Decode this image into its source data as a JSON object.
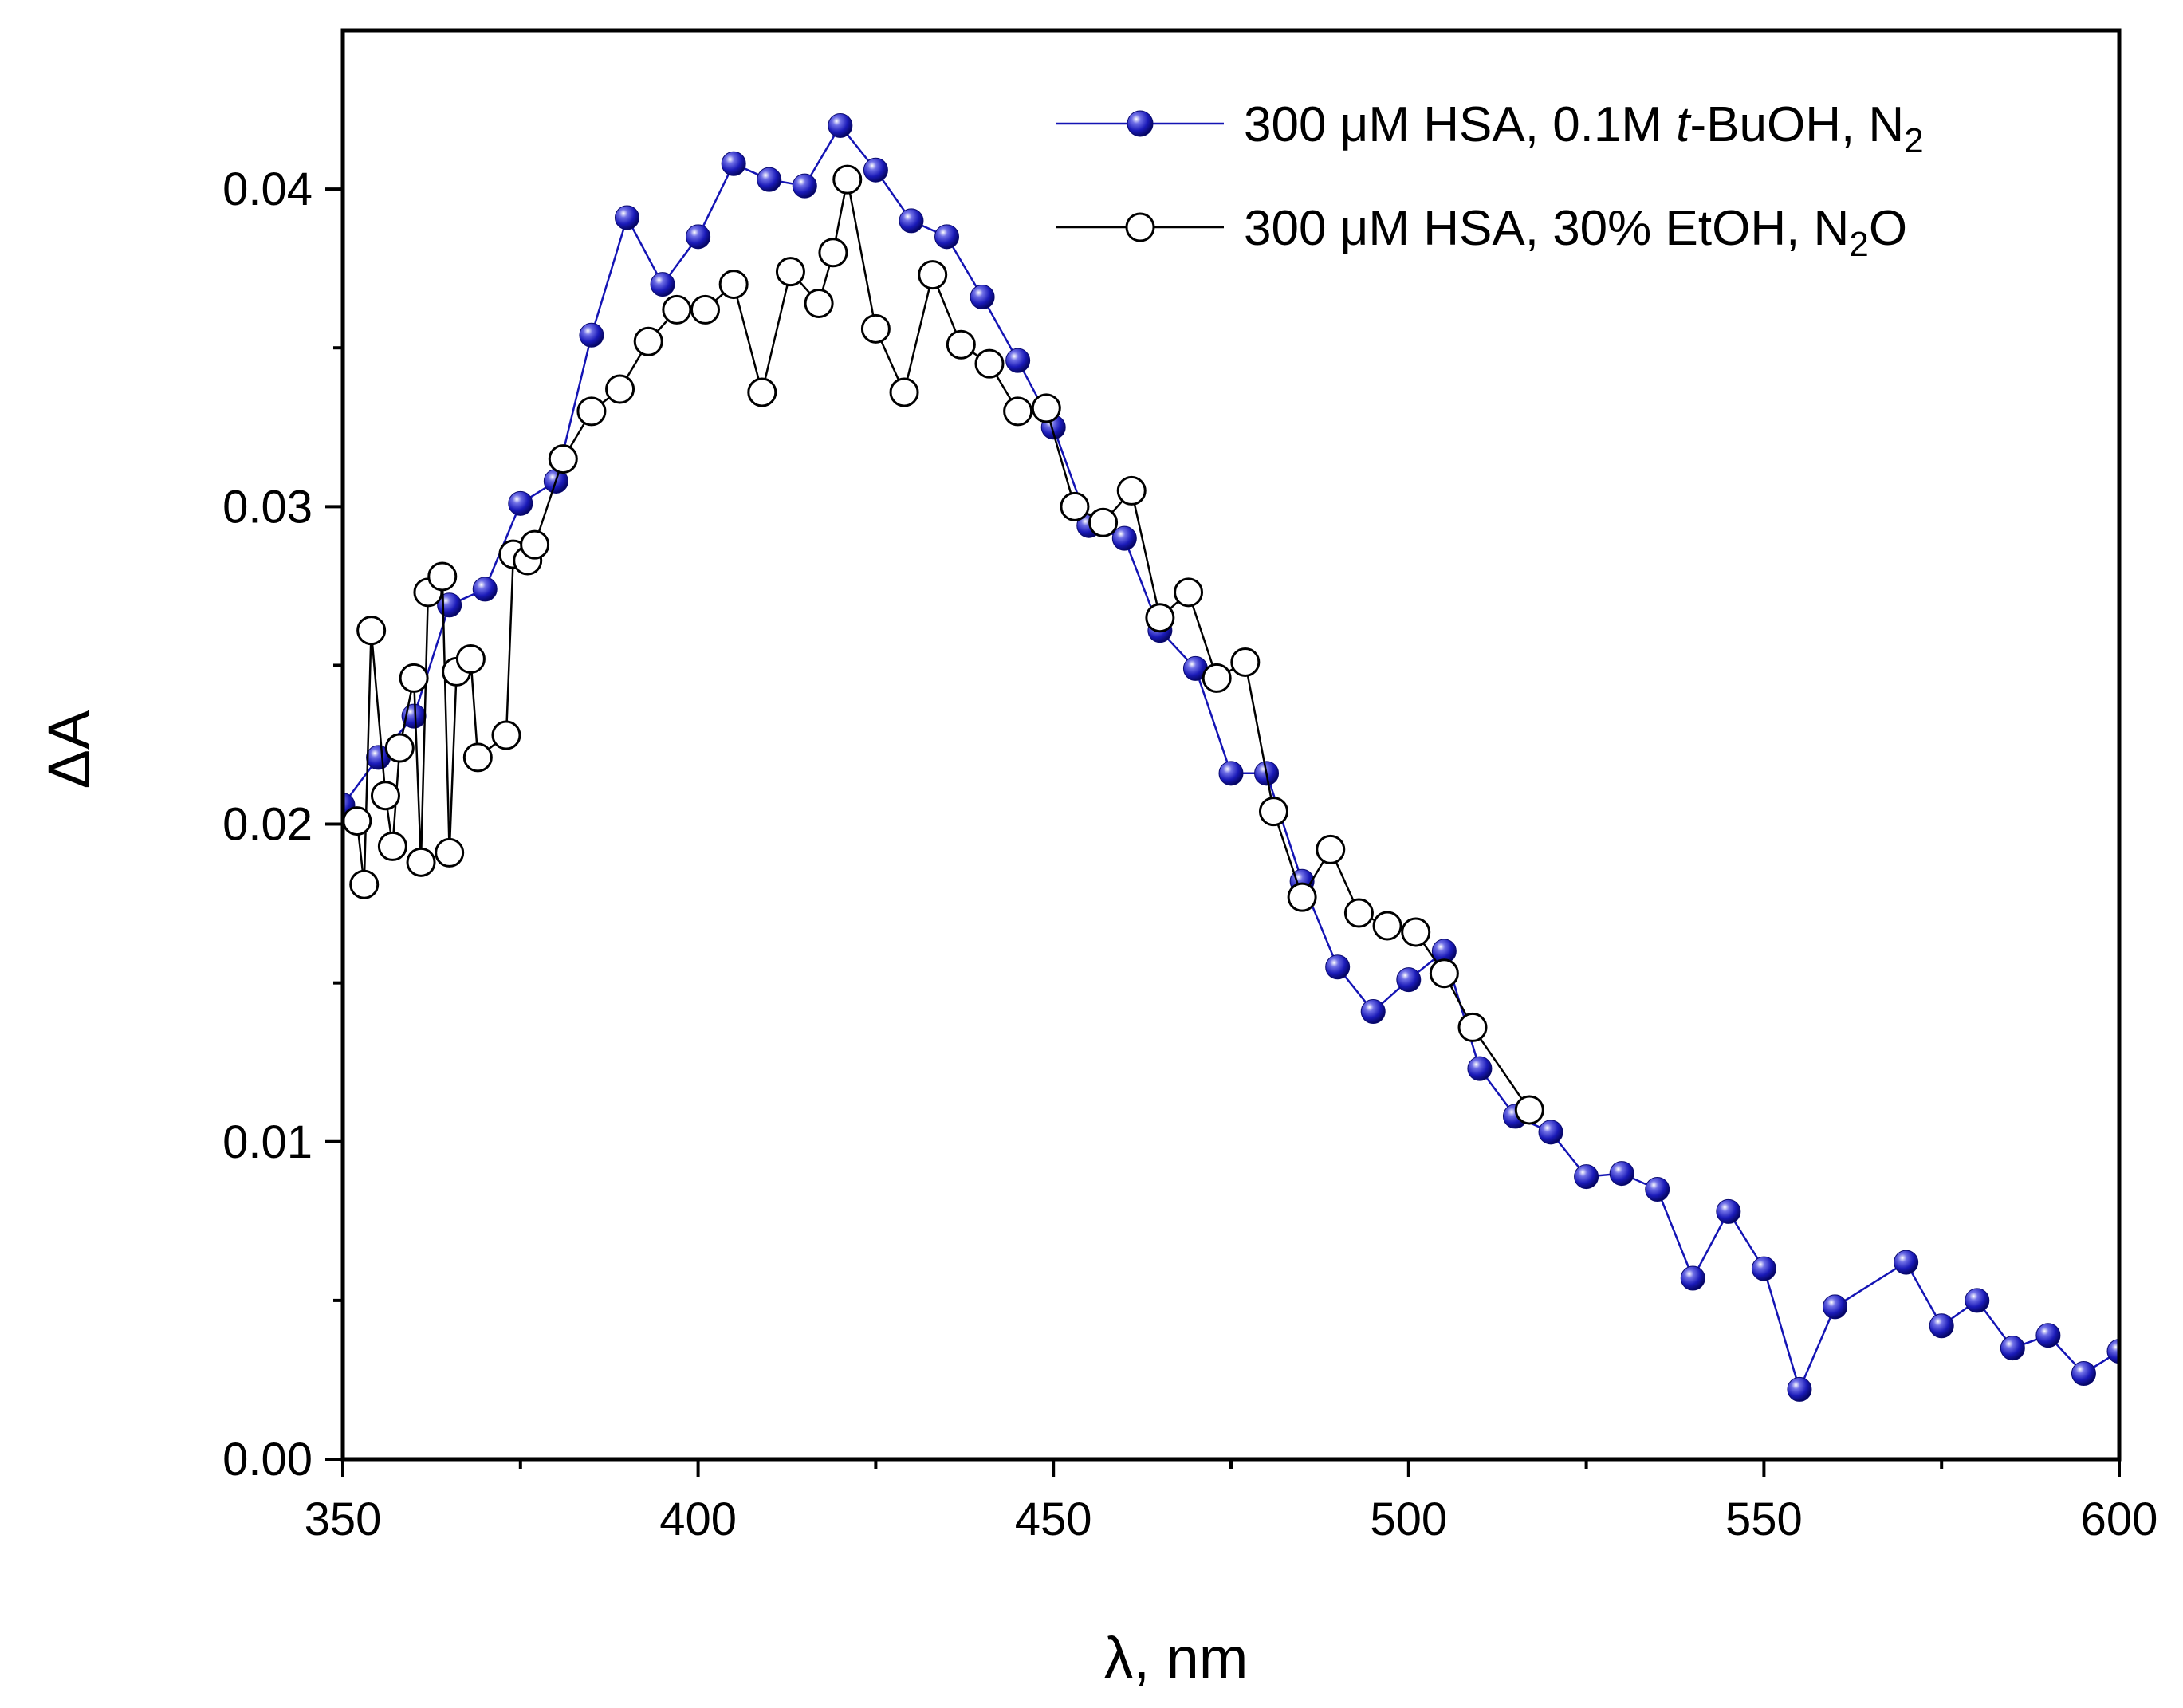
{
  "chart_data": {
    "type": "line",
    "title": "",
    "xlabel": "λ, nm",
    "ylabel": "ΔA",
    "xlim": [
      350,
      600
    ],
    "ylim": [
      0.0,
      0.045
    ],
    "x_ticks": [
      350,
      400,
      450,
      500,
      550,
      600
    ],
    "x_tick_labels": [
      "350",
      "400",
      "450",
      "500",
      "550",
      "600"
    ],
    "y_ticks": [
      0.0,
      0.01,
      0.02,
      0.03,
      0.04
    ],
    "y_tick_labels": [
      "0.00",
      "0.01",
      "0.02",
      "0.03",
      "0.04"
    ],
    "legend_position": "top-right",
    "grid": false,
    "series": [
      {
        "name": "300 μM HSA, 0.1M t-BuOH, N2",
        "legend_parts": [
          "300 μM HSA, 0.1M ",
          "t",
          "-BuOH, N",
          "2"
        ],
        "color": "#1414b4",
        "marker": "filled-sphere",
        "x": [
          350,
          355,
          360,
          365,
          370,
          375,
          380,
          385,
          390,
          395,
          400,
          405,
          410,
          415,
          420,
          425,
          430,
          435,
          440,
          445,
          450,
          455,
          460,
          465,
          470,
          475,
          480,
          485,
          490,
          495,
          500,
          505,
          510,
          515,
          520,
          525,
          530,
          535,
          540,
          545,
          550,
          555,
          560,
          570,
          575,
          580,
          585,
          590,
          595,
          600
        ],
        "y": [
          0.0206,
          0.0221,
          0.0234,
          0.0269,
          0.0274,
          0.0301,
          0.0308,
          0.0354,
          0.0391,
          0.037,
          0.0385,
          0.0408,
          0.0403,
          0.0401,
          0.042,
          0.0406,
          0.039,
          0.0385,
          0.0366,
          0.0346,
          0.0325,
          0.0294,
          0.029,
          0.0261,
          0.0249,
          0.0216,
          0.0216,
          0.0182,
          0.0155,
          0.0141,
          0.0151,
          0.016,
          0.0123,
          0.0108,
          0.0103,
          0.0089,
          0.009,
          0.0085,
          0.0057,
          0.0078,
          0.006,
          0.0022,
          0.0048,
          0.0062,
          0.0042,
          0.005,
          0.0035,
          0.0039,
          0.0027,
          0.0034
        ]
      },
      {
        "name": "300 μM HSA, 30% EtOH, N2O",
        "legend_parts": [
          "300 μM HSA, 30% EtOH, N",
          "2",
          "O"
        ],
        "color": "#000000",
        "marker": "open-circle",
        "x": [
          352,
          353,
          354,
          356,
          357,
          358,
          360,
          361,
          362,
          364,
          365,
          366,
          368,
          369,
          373,
          374,
          376,
          377,
          381,
          385,
          389,
          393,
          397,
          401,
          405,
          409,
          413,
          417,
          419,
          421,
          425,
          429,
          433,
          437,
          441,
          445,
          449,
          453,
          457,
          461,
          465,
          469,
          473,
          477,
          481,
          485,
          489,
          493,
          497,
          501,
          505,
          509,
          517
        ],
        "y": [
          0.0201,
          0.0181,
          0.0261,
          0.0209,
          0.0193,
          0.0224,
          0.0246,
          0.0188,
          0.0273,
          0.0278,
          0.0191,
          0.0248,
          0.0252,
          0.0221,
          0.0228,
          0.0285,
          0.0283,
          0.0288,
          0.0315,
          0.033,
          0.0337,
          0.0352,
          0.0362,
          0.0362,
          0.037,
          0.0336,
          0.0374,
          0.0364,
          0.038,
          0.0403,
          0.0356,
          0.0336,
          0.0373,
          0.0351,
          0.0345,
          0.033,
          0.0331,
          0.03,
          0.0295,
          0.0305,
          0.0265,
          0.0273,
          0.0246,
          0.0251,
          0.0204,
          0.0177,
          0.0192,
          0.0172,
          0.0168,
          0.0166,
          0.0153,
          0.0136,
          0.011
        ]
      }
    ]
  }
}
